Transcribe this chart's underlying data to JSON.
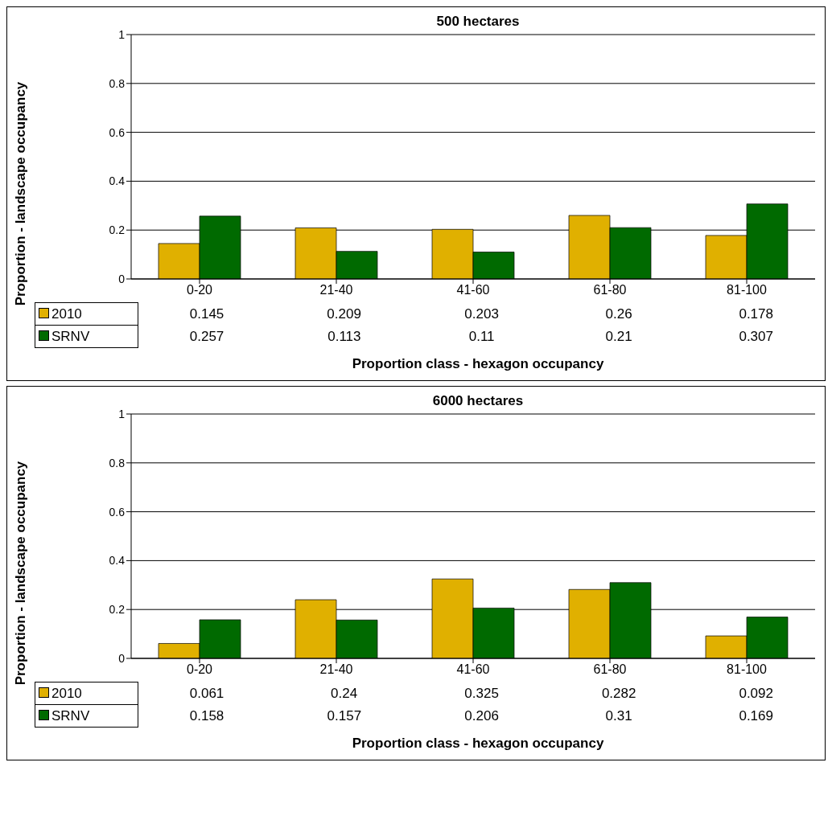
{
  "chart_data": [
    {
      "type": "bar",
      "title": "500 hectares",
      "xlabel": "Proportion class - hexagon occupancy",
      "ylabel": "Proportion - landscape occupancy",
      "categories": [
        "0-20",
        "21-40",
        "41-60",
        "61-80",
        "81-100"
      ],
      "series": [
        {
          "name": "2010",
          "color": "#e0b000",
          "values": [
            0.145,
            0.209,
            0.203,
            0.26,
            0.178
          ]
        },
        {
          "name": "SRNV",
          "color": "#006a00",
          "values": [
            0.257,
            0.113,
            0.11,
            0.21,
            0.307
          ]
        }
      ],
      "ylim": [
        0,
        1
      ],
      "yticks": [
        0,
        0.2,
        0.4,
        0.6,
        0.8,
        1
      ],
      "grid": "y",
      "legend": "bottom left",
      "data_labels": true
    },
    {
      "type": "bar",
      "title": "6000 hectares",
      "xlabel": "Proportion class - hexagon occupancy",
      "ylabel": "Proportion - landscape occupancy",
      "categories": [
        "0-20",
        "21-40",
        "41-60",
        "61-80",
        "81-100"
      ],
      "series": [
        {
          "name": "2010",
          "color": "#e0b000",
          "values": [
            0.061,
            0.24,
            0.325,
            0.282,
            0.092
          ]
        },
        {
          "name": "SRNV",
          "color": "#006a00",
          "values": [
            0.158,
            0.157,
            0.206,
            0.31,
            0.169
          ]
        }
      ],
      "ylim": [
        0,
        1
      ],
      "yticks": [
        0,
        0.2,
        0.4,
        0.6,
        0.8,
        1
      ],
      "grid": "y",
      "legend": "bottom left",
      "data_labels": true
    }
  ]
}
